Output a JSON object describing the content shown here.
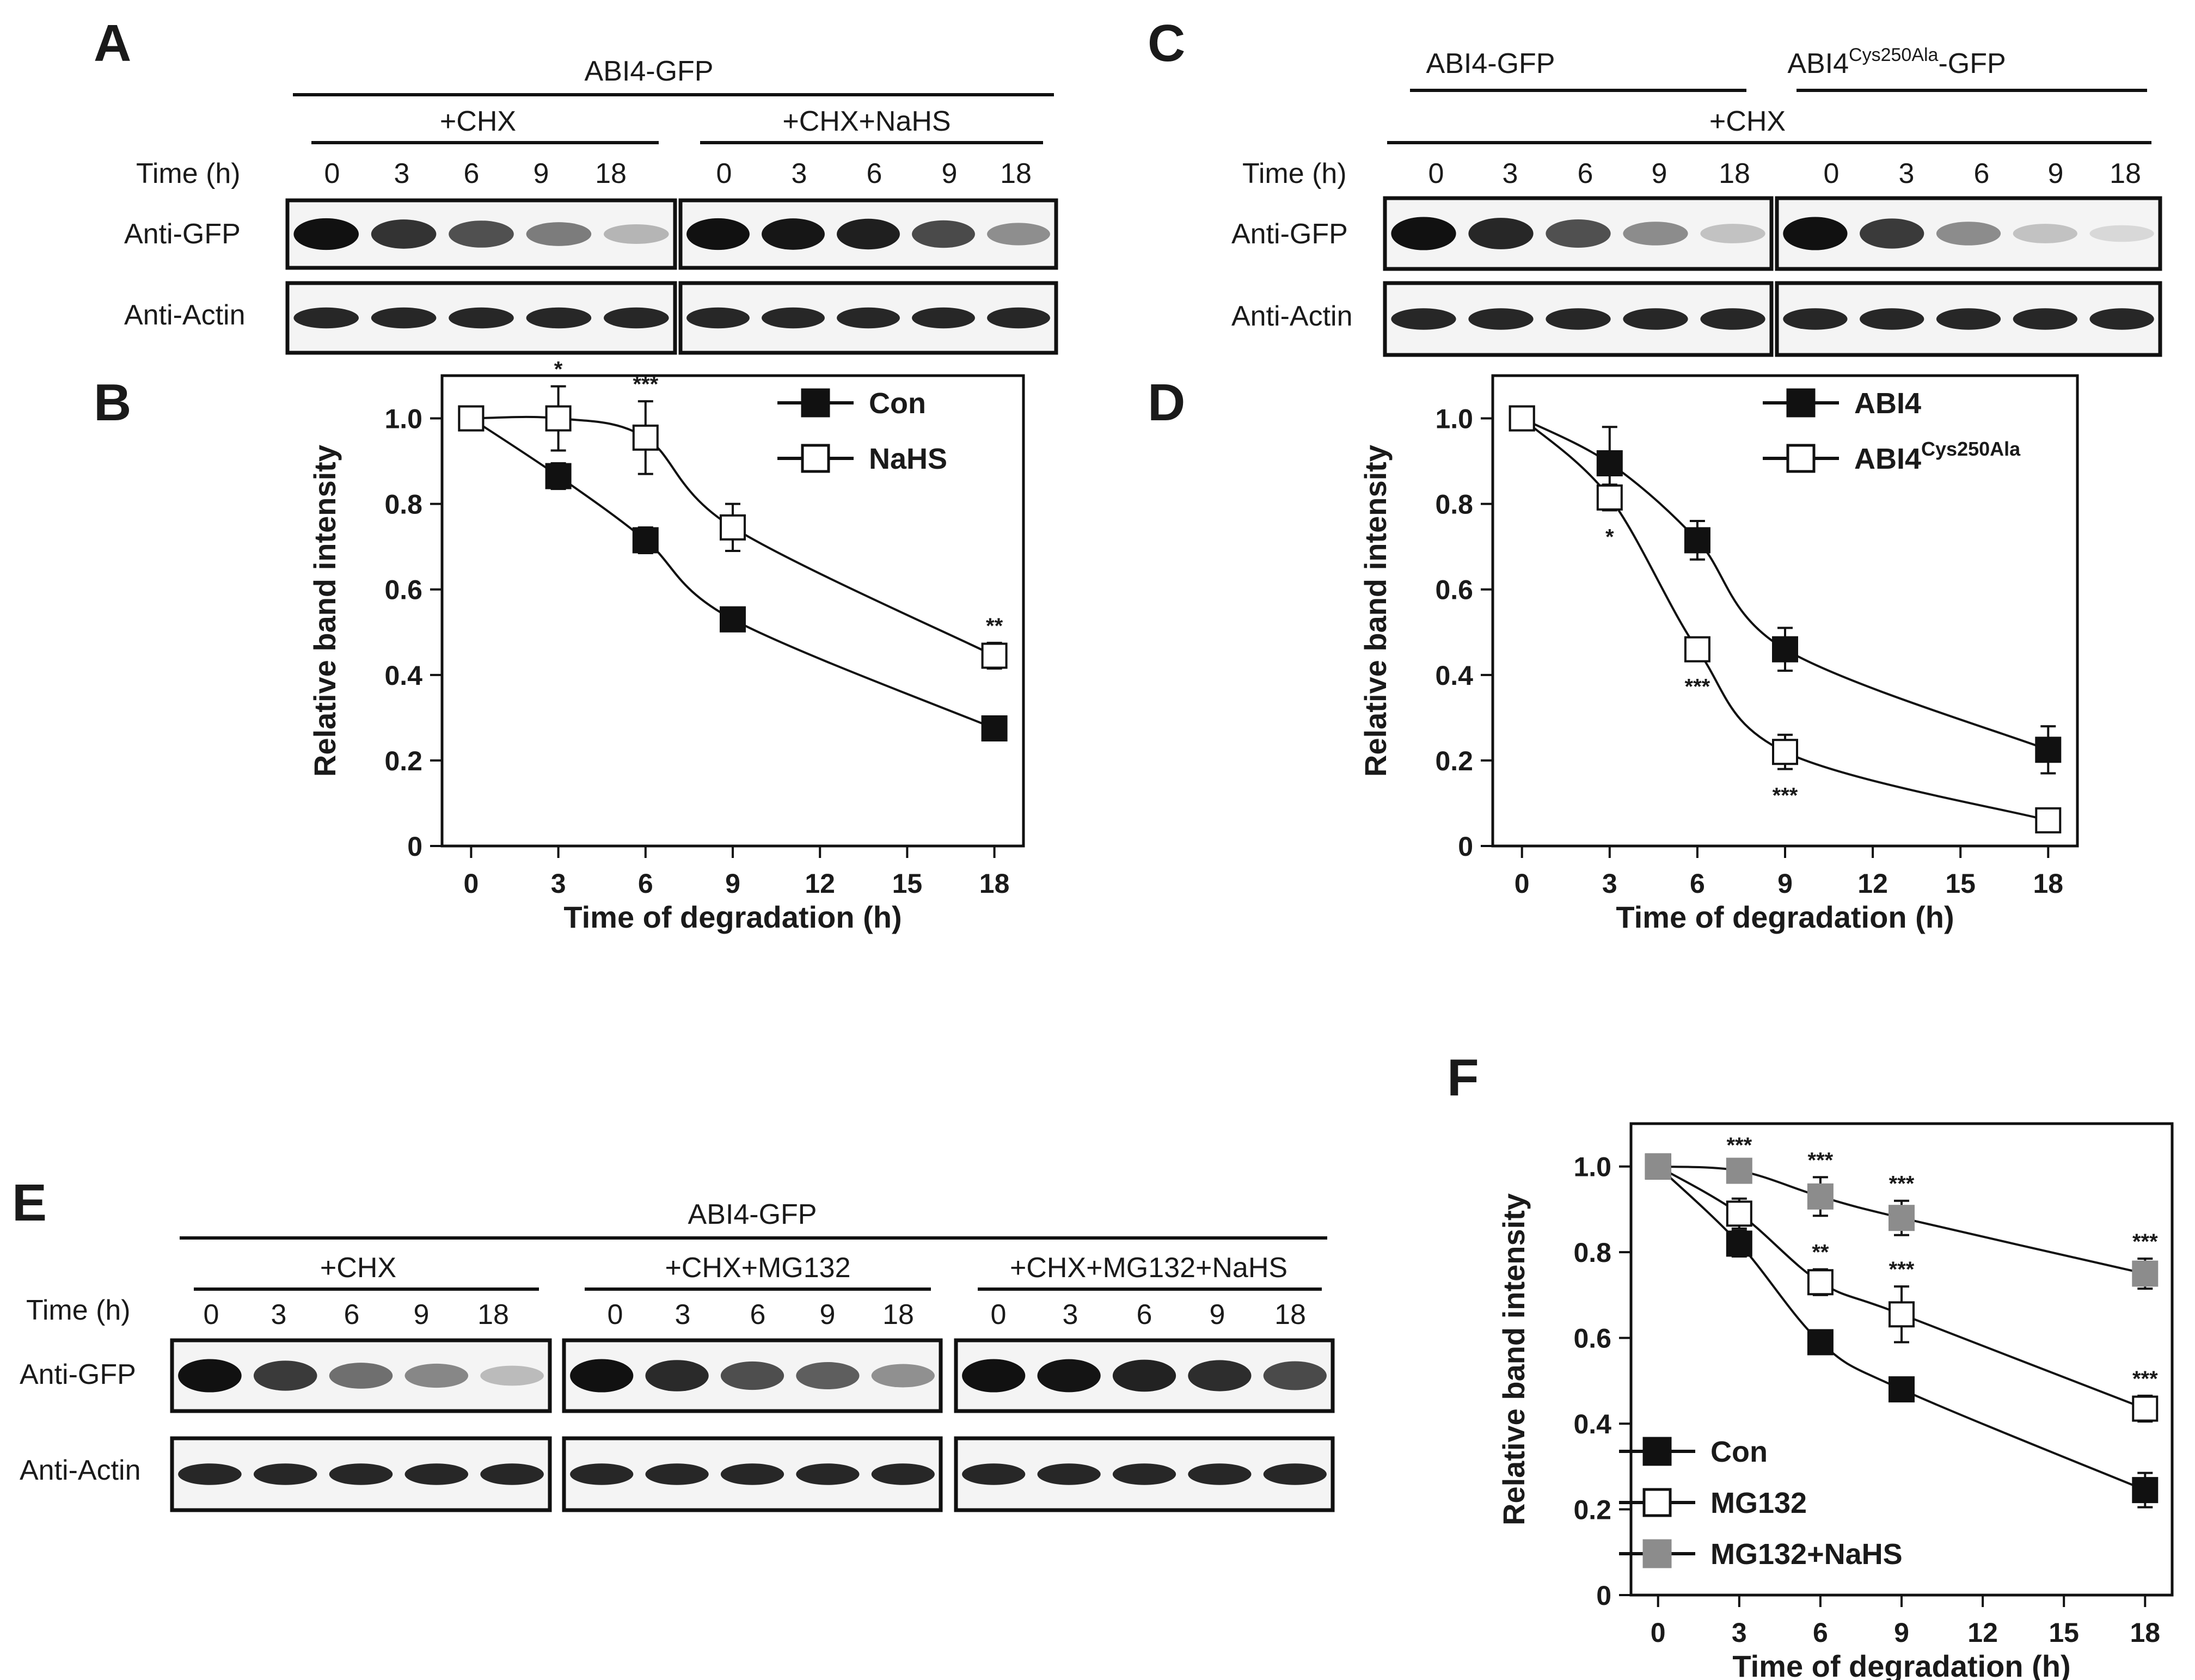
{
  "panels": [
    "A",
    "B",
    "C",
    "D",
    "E",
    "F"
  ],
  "blots": {
    "A": {
      "top_label": "ABI4-GFP",
      "groups": [
        "+CHX",
        "+CHX+NaHS"
      ],
      "time_label": "Time (h)",
      "times": [
        "0",
        "3",
        "6",
        "9",
        "18"
      ],
      "rows": [
        "Anti-GFP",
        "Anti-Actin"
      ],
      "gfp_intensity": [
        [
          1.0,
          0.85,
          0.72,
          0.53,
          0.28
        ],
        [
          1.0,
          0.98,
          0.94,
          0.75,
          0.45
        ]
      ]
    },
    "C": {
      "top_labels": [
        {
          "pre": "ABI4",
          "sup": "",
          "post": "-GFP"
        },
        {
          "pre": "ABI4",
          "sup": "Cys250Ala",
          "post": "-GFP"
        }
      ],
      "shared_label": "+CHX",
      "time_label": "Time (h)",
      "times": [
        "0",
        "3",
        "6",
        "9",
        "18"
      ],
      "rows": [
        "Anti-GFP",
        "Anti-Actin"
      ],
      "gfp_intensity": [
        [
          1.0,
          0.9,
          0.72,
          0.46,
          0.22
        ],
        [
          1.0,
          0.82,
          0.46,
          0.22,
          0.06
        ]
      ]
    },
    "E": {
      "top_label": "ABI4-GFP",
      "groups": [
        "+CHX",
        "+CHX+MG132",
        "+CHX+MG132+NaHS"
      ],
      "time_label": "Time (h)",
      "times": [
        "0",
        "3",
        "6",
        "9",
        "18"
      ],
      "rows": [
        "Anti-GFP",
        "Anti-Actin"
      ],
      "gfp_intensity": [
        [
          1.0,
          0.82,
          0.59,
          0.48,
          0.25
        ],
        [
          1.0,
          0.89,
          0.73,
          0.66,
          0.44
        ],
        [
          1.0,
          0.99,
          0.93,
          0.88,
          0.75
        ]
      ]
    }
  },
  "chart_data": [
    {
      "panel": "B",
      "type": "line",
      "xlabel": "Time of degradation (h)",
      "ylabel": "Relative band intensity",
      "xlim": [
        -1,
        19
      ],
      "ylim": [
        0,
        1.1
      ],
      "xticks": [
        0,
        3,
        6,
        9,
        12,
        15,
        18
      ],
      "yticks": [
        0,
        0.2,
        0.4,
        0.6,
        0.8,
        1.0
      ],
      "ytick_labels": [
        "0",
        "0.2",
        "0.4",
        "0.6",
        "0.8",
        "1.0"
      ],
      "legend_position": "top-right",
      "series": [
        {
          "name": "Con",
          "marker": "filled-square",
          "color": "#111111",
          "x": [
            0,
            3,
            6,
            9,
            18
          ],
          "y": [
            1.0,
            0.865,
            0.715,
            0.53,
            0.275
          ],
          "err": [
            0,
            0.03,
            0.03,
            0.025,
            0.015
          ],
          "stars": [
            "",
            "",
            "",
            "",
            ""
          ]
        },
        {
          "name": "NaHS",
          "marker": "open-square",
          "color": "#111111",
          "x": [
            0,
            3,
            6,
            9,
            18
          ],
          "y": [
            1.0,
            1.0,
            0.955,
            0.745,
            0.445
          ],
          "err": [
            0,
            0.075,
            0.085,
            0.055,
            0.03
          ],
          "stars": [
            "",
            "*",
            "***",
            "",
            "**"
          ]
        }
      ]
    },
    {
      "panel": "D",
      "type": "line",
      "xlabel": "Time of degradation (h)",
      "ylabel": "Relative band intensity",
      "xlim": [
        -1,
        19
      ],
      "ylim": [
        0,
        1.1
      ],
      "xticks": [
        0,
        3,
        6,
        9,
        12,
        15,
        18
      ],
      "yticks": [
        0,
        0.2,
        0.4,
        0.6,
        0.8,
        1.0
      ],
      "ytick_labels": [
        "0",
        "0.2",
        "0.4",
        "0.6",
        "0.8",
        "1.0"
      ],
      "legend_position": "top-right",
      "series": [
        {
          "name": "ABI4",
          "name_sup": "",
          "marker": "filled-square",
          "color": "#111111",
          "x": [
            0,
            3,
            6,
            9,
            18
          ],
          "y": [
            1.0,
            0.895,
            0.715,
            0.46,
            0.225
          ],
          "err": [
            0,
            0.085,
            0.045,
            0.05,
            0.055
          ],
          "stars": [
            "",
            "",
            "",
            "",
            ""
          ]
        },
        {
          "name": "ABI4",
          "name_sup": "Cys250Ala",
          "marker": "open-square",
          "color": "#111111",
          "x": [
            0,
            3,
            6,
            9,
            18
          ],
          "y": [
            1.0,
            0.815,
            0.46,
            0.22,
            0.06
          ],
          "err": [
            0,
            0.03,
            0.025,
            0.04,
            0.025
          ],
          "stars": [
            "",
            "*",
            "***",
            "***",
            ""
          ]
        }
      ]
    },
    {
      "panel": "F",
      "type": "line",
      "xlabel": "Time of degradation (h)",
      "ylabel": "Relative band intensity",
      "xlim": [
        -1,
        19
      ],
      "ylim": [
        0,
        1.1
      ],
      "xticks": [
        0,
        3,
        6,
        9,
        12,
        15,
        18
      ],
      "yticks": [
        0,
        0.2,
        0.4,
        0.6,
        0.8,
        1.0
      ],
      "ytick_labels": [
        "0",
        "0.2",
        "0.4",
        "0.6",
        "0.8",
        "1.0"
      ],
      "legend_position": "bottom-left",
      "series": [
        {
          "name": "Con",
          "marker": "filled-square",
          "color": "#111111",
          "x": [
            0,
            3,
            6,
            9,
            18
          ],
          "y": [
            1.0,
            0.82,
            0.59,
            0.48,
            0.245
          ],
          "err": [
            0,
            0.03,
            0.015,
            0.025,
            0.04
          ],
          "stars": [
            "",
            "",
            "",
            "",
            ""
          ]
        },
        {
          "name": "MG132",
          "marker": "open-square",
          "color": "#111111",
          "x": [
            0,
            3,
            6,
            9,
            18
          ],
          "y": [
            1.0,
            0.89,
            0.73,
            0.655,
            0.435
          ],
          "err": [
            0,
            0.035,
            0.03,
            0.065,
            0.03
          ],
          "stars": [
            "",
            "",
            "**",
            "***",
            "***"
          ]
        },
        {
          "name": "MG132+NaHS",
          "marker": "gray-square",
          "color": "#8c8c8c",
          "x": [
            0,
            3,
            6,
            9,
            18
          ],
          "y": [
            1.0,
            0.99,
            0.93,
            0.88,
            0.75
          ],
          "err": [
            0,
            0.02,
            0.045,
            0.04,
            0.035
          ],
          "stars": [
            "",
            "***",
            "***",
            "***",
            "***"
          ]
        }
      ]
    }
  ]
}
